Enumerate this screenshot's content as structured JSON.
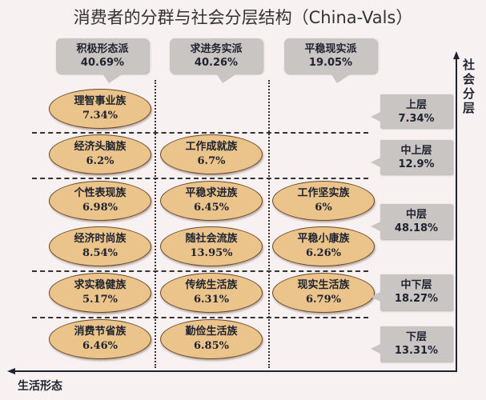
{
  "title": "消费者的分群与社会分层结构（China-Vals）",
  "columns": [
    {
      "name": "积极形态派",
      "pct": "40.69%"
    },
    {
      "name": "求进务实派",
      "pct": "40.26%"
    },
    {
      "name": "平稳现实派",
      "pct": "19.05%"
    }
  ],
  "layers": [
    {
      "name": "上层",
      "pct": "7.34%"
    },
    {
      "name": "中上层",
      "pct": "12.9%"
    },
    {
      "name": "中层",
      "pct": "48.18%"
    },
    {
      "name": "中下层",
      "pct": "18.27%"
    },
    {
      "name": "下层",
      "pct": "13.31%"
    }
  ],
  "groups": [
    {
      "name": "理智事业族",
      "pct": "7.34%"
    },
    {
      "name": "经济头脑族",
      "pct": "6.2%"
    },
    {
      "name": "工作成就族",
      "pct": "6.7%"
    },
    {
      "name": "个性表现族",
      "pct": "6.98%"
    },
    {
      "name": "平稳求进族",
      "pct": "6.45%"
    },
    {
      "name": "工作坚实族",
      "pct": "6%"
    },
    {
      "name": "经济时尚族",
      "pct": "8.54%"
    },
    {
      "name": "随社会流族",
      "pct": "13.95%"
    },
    {
      "name": "平稳小康族",
      "pct": "6.26%"
    },
    {
      "name": "求实稳健族",
      "pct": "5.17%"
    },
    {
      "name": "传统生活族",
      "pct": "6.31%"
    },
    {
      "name": "现实生活族",
      "pct": "6.79%"
    },
    {
      "name": "消费节省族",
      "pct": "6.46%"
    },
    {
      "name": "勤俭生活族",
      "pct": "6.85%"
    }
  ],
  "axes": {
    "y_label": "社会分层",
    "x_label": "生活形态"
  },
  "colors": {
    "ellipse_fill": "#eac48a",
    "callout": "#c9c5c2",
    "background": "#f8f1f1"
  }
}
